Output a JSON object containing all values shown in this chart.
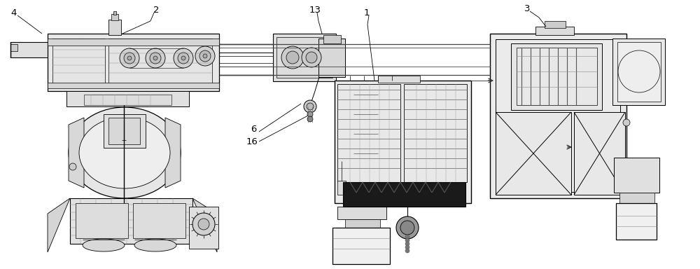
{
  "bg_color": "#ffffff",
  "lc": "#000000",
  "figsize": [
    10.0,
    3.84
  ],
  "dpi": 100,
  "gray1": "#f0f0f0",
  "gray2": "#e0e0e0",
  "gray3": "#cccccc",
  "gray4": "#aaaaaa",
  "dark": "#333333",
  "black": "#111111"
}
